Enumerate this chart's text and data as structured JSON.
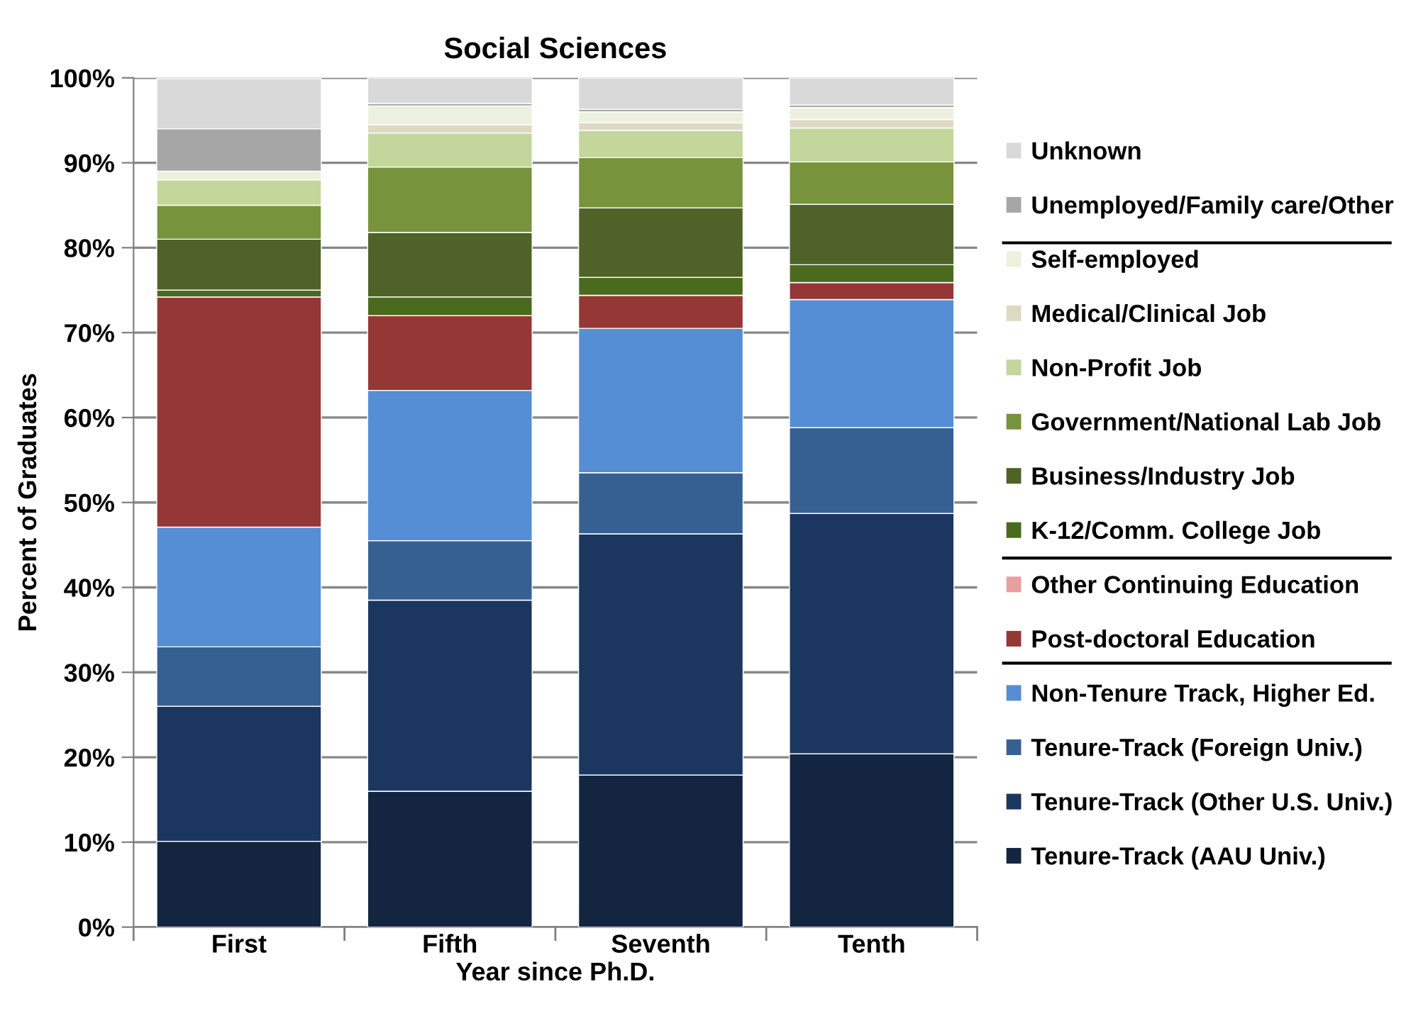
{
  "chart_data": {
    "type": "bar",
    "title": "Social Sciences",
    "xlabel": "Year since Ph.D.",
    "ylabel": "Percent of Graduates",
    "categories": [
      "First",
      "Fifth",
      "Seventh",
      "Tenth"
    ],
    "stacked": true,
    "legend": "right",
    "grid": "y",
    "ylim": [
      0,
      100
    ],
    "yticks": [
      {
        "value": 0,
        "label": "0%"
      },
      {
        "value": 10,
        "label": "10%"
      },
      {
        "value": 20,
        "label": "20%"
      },
      {
        "value": 30,
        "label": "30%"
      },
      {
        "value": 40,
        "label": "40%"
      },
      {
        "value": 50,
        "label": "50%"
      },
      {
        "value": 60,
        "label": "60%"
      },
      {
        "value": 70,
        "label": "70%"
      },
      {
        "value": 80,
        "label": "80%"
      },
      {
        "value": 90,
        "label": "90%"
      },
      {
        "value": 100,
        "label": "100%"
      }
    ],
    "series": [
      {
        "name": "Tenure-Track (AAU Univ.)",
        "color": "#132540",
        "values": [
          10.1,
          16,
          17.9,
          20.4
        ]
      },
      {
        "name": "Tenure-Track (Other U.S. Univ.)",
        "color": "#1b365f",
        "values": [
          15.9,
          22.5,
          28.4,
          28.3
        ]
      },
      {
        "name": "Tenure-Track (Foreign Univ.)",
        "color": "#366092",
        "values": [
          7,
          7,
          7.2,
          10.1
        ]
      },
      {
        "name": "Non-Tenure Track, Higher Ed.",
        "color": "#558ed5",
        "values": [
          14.1,
          17.7,
          17,
          15.1
        ]
      },
      {
        "name": "Post-doctoral Education",
        "color": "#953735",
        "values": [
          27.1,
          8.8,
          3.9,
          2
        ]
      },
      {
        "name": "Other Continuing Education",
        "color": "#e6a0a0",
        "values": [
          0,
          0,
          0,
          0
        ]
      },
      {
        "name": "K-12/Comm. College Job",
        "color": "#4a6a1e",
        "values": [
          0.8,
          2.2,
          2.1,
          2.1
        ]
      },
      {
        "name": "Business/Industry Job",
        "color": "#4f6228",
        "values": [
          6,
          7.6,
          8.2,
          7.1
        ]
      },
      {
        "name": "Government/National Lab Job",
        "color": "#77933c",
        "values": [
          4,
          7.7,
          5.9,
          5
        ]
      },
      {
        "name": "Non-Profit Job",
        "color": "#c3d69b",
        "values": [
          3,
          4,
          3.2,
          4
        ]
      },
      {
        "name": "Medical/Clinical Job",
        "color": "#ddd9c3",
        "values": [
          0,
          1,
          0.9,
          1
        ]
      },
      {
        "name": "Self-employed",
        "color": "#ebf1de",
        "values": [
          1,
          2.2,
          1.3,
          1.4
        ]
      },
      {
        "name": "Unemployed/Family care/Other",
        "color": "#a6a6a6",
        "values": [
          5,
          0.3,
          0.3,
          0.3
        ]
      },
      {
        "name": "Unknown",
        "color": "#d9d9d9",
        "values": [
          5.9,
          3,
          3.7,
          3.2
        ]
      }
    ]
  }
}
